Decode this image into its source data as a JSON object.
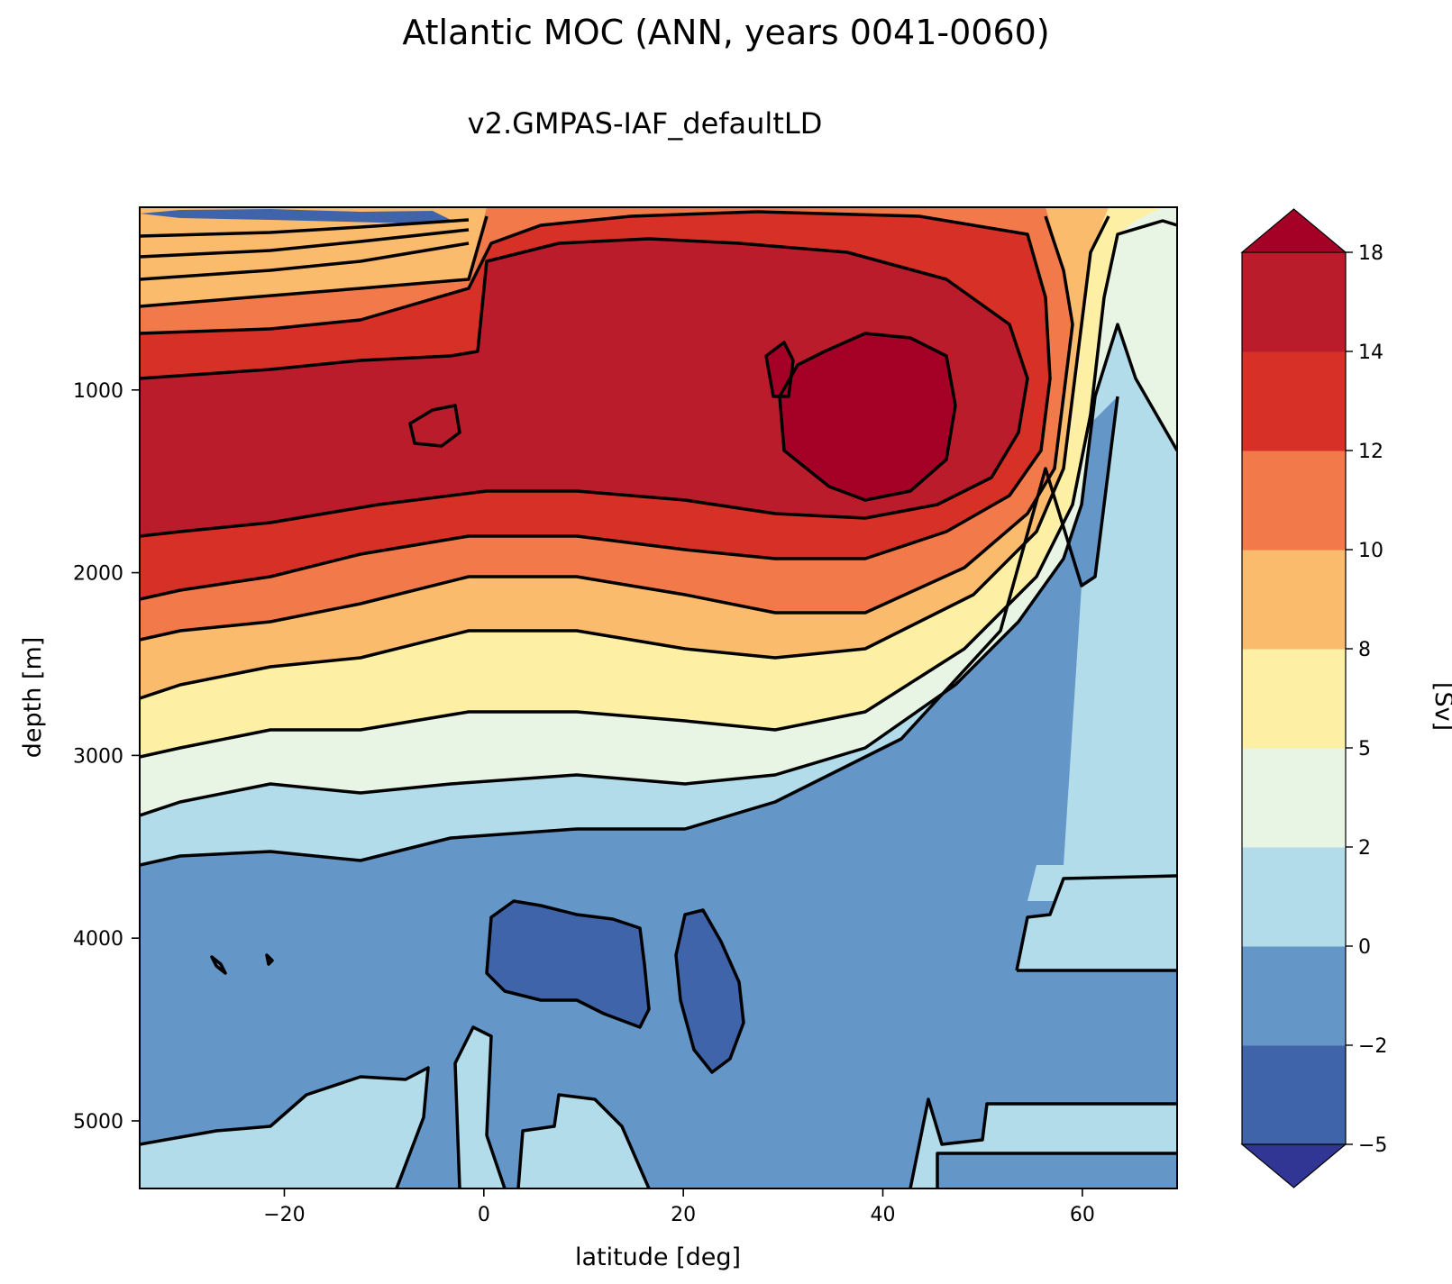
{
  "chart_data": {
    "type": "heatmap",
    "plot_kind": "filled contour",
    "title": "Atlantic MOC (ANN, years 0041-0060)",
    "subtitle": "v2.GMPAS-IAF_defaultLD",
    "xlabel": "latitude [deg]",
    "ylabel": "depth [m]",
    "xlim": [
      -34.5,
      69.5
    ],
    "ylim": [
      5370,
      0
    ],
    "xticks": [
      -20,
      0,
      20,
      40,
      60
    ],
    "xtick_labels": [
      "−20",
      "0",
      "20",
      "40",
      "60"
    ],
    "yticks": [
      1000,
      2000,
      3000,
      4000,
      5000
    ],
    "ytick_labels": [
      "1000",
      "2000",
      "3000",
      "4000",
      "5000"
    ],
    "colorbar": {
      "label": "[Sv]",
      "levels": [
        -5,
        -2,
        0,
        2,
        5,
        8,
        10,
        12,
        14,
        18
      ],
      "tick_labels": [
        "−5",
        "−2",
        "0",
        "2",
        "5",
        "8",
        "10",
        "12",
        "14",
        "18"
      ],
      "extend": "both",
      "colors": [
        "#4064aa",
        "#6496c7",
        "#b2dcea",
        "#e9f5e4",
        "#fdefa4",
        "#fbbb6c",
        "#f27a4a",
        "#d73027",
        "#bb1c2b"
      ],
      "under_color": "#313695",
      "over_color": "#a50026"
    },
    "features": {
      "max_cell": {
        "lat_range": [
          30,
          48
        ],
        "depth_range": [
          700,
          1700
        ],
        "value_min": 14
      },
      "upper_cell": {
        "description": "positive overturning cell from surface to ~3500 m"
      },
      "abyssal_cell": {
        "depth_range": [
          3600,
          5370
        ],
        "value_range": [
          -5,
          0
        ]
      }
    }
  }
}
